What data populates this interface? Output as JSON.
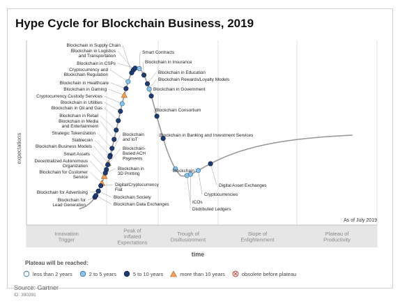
{
  "title": "Hype Cycle for Blockchain Business, 2019",
  "source": "Source: Gartner",
  "doc_id": "ID: 390391",
  "legend": {
    "title": "Plateau will be reached:",
    "items": [
      {
        "label": "less than 2 years",
        "marker": "circle-white"
      },
      {
        "label": "2 to 5 years",
        "marker": "circle-lightblue"
      },
      {
        "label": "5 to 10 years",
        "marker": "circle-navy"
      },
      {
        "label": "more than 10 years",
        "marker": "triangle-orange"
      },
      {
        "label": "obsolete before plateau",
        "marker": "circle-x-red"
      }
    ]
  },
  "colors": {
    "curve": "#9a9a9a",
    "navy": "#1f3b70",
    "lightblue": "#8fc3e6",
    "orange": "#f2a15a",
    "white": "#ffffff",
    "phase_band": "#e6e6e6",
    "phase_text": "#888888"
  },
  "chart_data": {
    "type": "hype-cycle",
    "ylabel": "expectations",
    "xlabel": "time",
    "as_of": "As of July 2019",
    "phases": [
      {
        "name": "Innovation\nTrigger"
      },
      {
        "name": "Peak of\nInflated\nExpectations"
      },
      {
        "name": "Trough of\nDisillusionment"
      },
      {
        "name": "Slope of\nEnlightenment"
      },
      {
        "name": "Plateau of\nProductivity"
      }
    ],
    "points": [
      {
        "label": "Blockchain in Supply Chain",
        "marker": "navy",
        "t": 0.3
      },
      {
        "label": "Blockchain in Logistics\nand Transportation",
        "marker": "navy",
        "t": 0.305
      },
      {
        "label": "Blockchain in CSPs",
        "marker": "navy",
        "t": 0.31
      },
      {
        "label": "Cryptocurrency and\nBlockchain Regulation",
        "marker": "lightblue",
        "t": 0.29
      },
      {
        "label": "Blockchain in Healthcare",
        "marker": "navy",
        "t": 0.284
      },
      {
        "label": "Blockchain in Gaming",
        "marker": "orange",
        "t": 0.279
      },
      {
        "label": "Cryptocurrency Custody Services",
        "marker": "lightblue",
        "t": 0.273
      },
      {
        "label": "Blockchain in Utilities",
        "marker": "navy",
        "t": 0.268
      },
      {
        "label": "Blockchain in Oil and Gas",
        "marker": "navy",
        "t": 0.262
      },
      {
        "label": "Blockchain in Retail",
        "marker": "navy",
        "t": 0.256
      },
      {
        "label": "Blockchain in Media\nand Entertainment",
        "marker": "navy",
        "t": 0.25
      },
      {
        "label": "Strategic Tokenization",
        "marker": "navy",
        "t": 0.244
      },
      {
        "label": "Stablecoin",
        "marker": "navy",
        "t": 0.239
      },
      {
        "label": "Blockchain Business Models",
        "marker": "orange",
        "t": 0.233
      },
      {
        "label": "Smart Assets",
        "marker": "navy",
        "t": 0.228
      },
      {
        "label": "Decentralized Autonomous\nOrganization",
        "marker": "orange",
        "t": 0.222
      },
      {
        "label": "Blockchain for Customer\nService",
        "marker": "orange",
        "t": 0.215
      },
      {
        "label": "Blockchain for Advertising",
        "marker": "navy",
        "t": 0.205
      },
      {
        "label": "Blockchain for\nLead Generation",
        "marker": "navy",
        "t": 0.195
      },
      {
        "label": "Blockchain\nand IoT",
        "marker": "navy",
        "t": 0.238
      },
      {
        "label": "Blockchain-\nBased ACH\nPayments",
        "marker": "navy",
        "t": 0.232
      },
      {
        "label": "Blockchain in\n3D Printing",
        "marker": "navy",
        "t": 0.225
      },
      {
        "label": "Digital/Cryptocurrency\nFiat",
        "marker": "navy",
        "t": 0.212
      },
      {
        "label": "Blockchain Society",
        "marker": "navy",
        "t": 0.205
      },
      {
        "label": "Blockchain Data Exchanges",
        "marker": "navy",
        "t": 0.198
      },
      {
        "label": "Smart Contracts",
        "marker": "lightblue",
        "t": 0.322
      },
      {
        "label": "Blockchain in Insurance",
        "marker": "navy",
        "t": 0.335
      },
      {
        "label": "Blockchain in Education",
        "marker": "navy",
        "t": 0.345
      },
      {
        "label": "Blockchain Rewards/Loyalty Models",
        "marker": "lightblue",
        "t": 0.35
      },
      {
        "label": "Blockchain in Government",
        "marker": "navy",
        "t": 0.356
      },
      {
        "label": "Blockchain Consortium",
        "marker": "navy",
        "t": 0.372
      },
      {
        "label": "Blockchain in Banking and Investment Services",
        "marker": "navy",
        "t": 0.39
      },
      {
        "label": "Blockchain",
        "marker": "lightblue",
        "t": 0.425
      },
      {
        "label": "ICOs",
        "marker": "lightblue",
        "t": 0.458
      },
      {
        "label": "Distributed Ledgers",
        "marker": "lightblue",
        "t": 0.468
      },
      {
        "label": "Cryptocurrencies",
        "marker": "lightblue",
        "t": 0.49
      },
      {
        "label": "Digital Asset Exchanges",
        "marker": "navy",
        "t": 0.525
      }
    ]
  }
}
